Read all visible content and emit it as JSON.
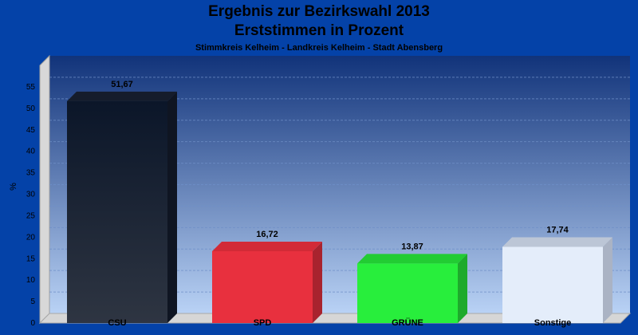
{
  "header": {
    "title": "Ergebnis zur Bezirkswahl 2013",
    "subtitle": "Erststimmen in Prozent",
    "location": "Stimmkreis Kelheim - Landkreis Kelheim - Stadt Abensberg"
  },
  "colors": {
    "background": "#0442a8",
    "plot_top": "#11337a",
    "plot_bottom": "#b9d2f5",
    "CSU": "#1b2230",
    "SPD": "#e8303e",
    "GRUENE": "#28ee3c",
    "Sonstige": "#e4edfa"
  },
  "chart_data": {
    "type": "bar",
    "title": "Ergebnis zur Bezirkswahl 2013",
    "subtitle": "Erststimmen in Prozent",
    "caption": "Stimmkreis Kelheim - Landkreis Kelheim - Stadt Abensberg",
    "categories": [
      "CSU",
      "SPD",
      "GRÜNE",
      "Sonstige"
    ],
    "values": [
      51.67,
      16.72,
      13.87,
      17.74
    ],
    "value_labels": [
      "51,67",
      "16,72",
      "13,87",
      "17,74"
    ],
    "ylabel": "%",
    "xlabel": "",
    "ylim": [
      0,
      60
    ],
    "yticks": [
      0,
      5,
      10,
      15,
      20,
      25,
      30,
      35,
      40,
      45,
      50,
      55
    ],
    "grid": true,
    "style": "3d"
  }
}
